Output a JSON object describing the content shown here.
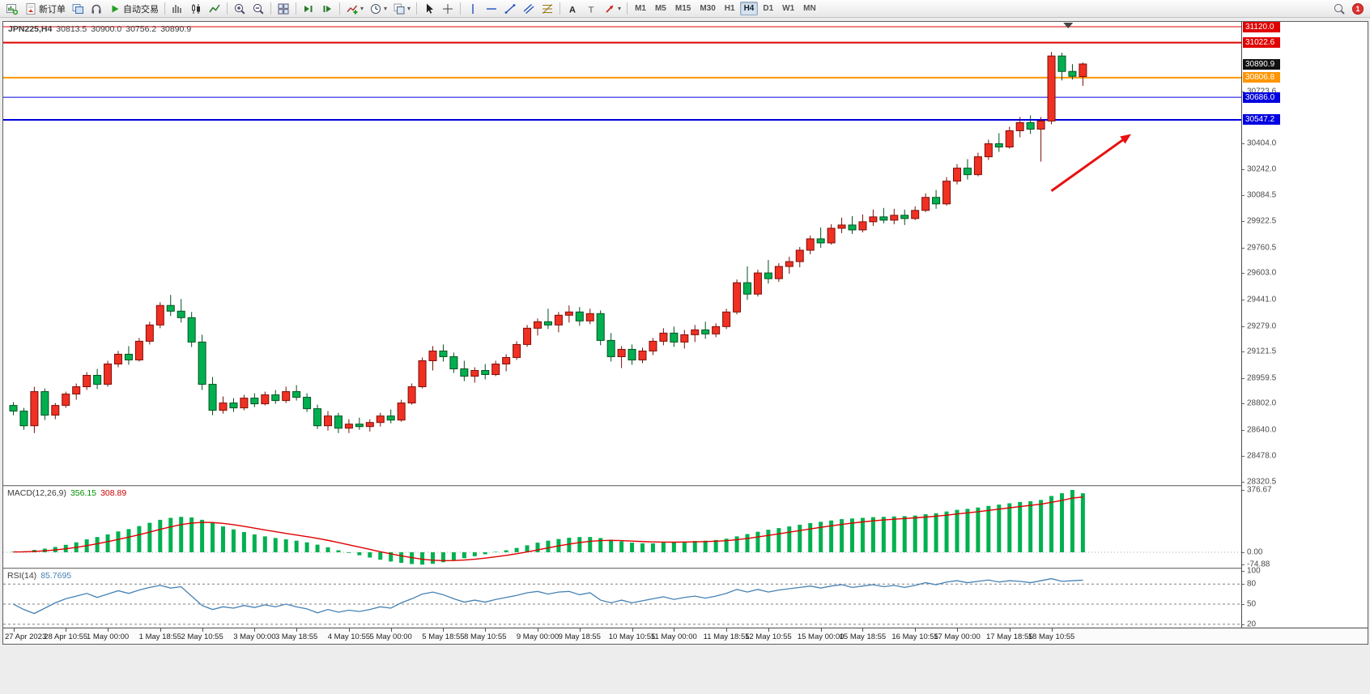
{
  "toolbar": {
    "groups": [
      [
        {
          "name": "new-chart-button",
          "icon": "chart-new"
        },
        {
          "name": "new-order-button",
          "icon": "order-doc",
          "label": "新订单"
        },
        {
          "name": "chart-profiles-button",
          "icon": "profiles"
        },
        {
          "name": "market-watch-button",
          "icon": "market-watch"
        },
        {
          "name": "autotrade-button",
          "icon": "play",
          "label": "自动交易"
        }
      ],
      [
        {
          "name": "bar-chart-button",
          "icon": "bars"
        },
        {
          "name": "candlestick-chart-button",
          "icon": "candles"
        },
        {
          "name": "line-chart-button",
          "icon": "linechart"
        }
      ],
      [
        {
          "name": "zoom-in-button",
          "icon": "zoom-in"
        },
        {
          "name": "zoom-out-button",
          "icon": "zoom-out"
        }
      ],
      [
        {
          "name": "tile-windows-button",
          "icon": "tile"
        }
      ],
      [
        {
          "name": "auto-scroll-button",
          "icon": "autoscroll"
        },
        {
          "name": "chart-shift-button",
          "icon": "chartshift"
        }
      ],
      [
        {
          "name": "indicators-button",
          "icon": "indicators",
          "dropdown": true
        },
        {
          "name": "periods-button",
          "icon": "clock",
          "dropdown": true
        },
        {
          "name": "templates-button",
          "icon": "template",
          "dropdown": true
        }
      ],
      [
        {
          "name": "cursor-button",
          "icon": "cursor"
        },
        {
          "name": "crosshair-button",
          "icon": "crosshair"
        }
      ],
      [
        {
          "name": "vertical-line-button",
          "icon": "vline"
        },
        {
          "name": "horizontal-line-button",
          "icon": "hline"
        },
        {
          "name": "trendline-button",
          "icon": "trendline"
        },
        {
          "name": "equidistant-channel-button",
          "icon": "channel"
        },
        {
          "name": "fibonacci-button",
          "icon": "fibo"
        }
      ],
      [
        {
          "name": "text-button",
          "icon": "text-a"
        },
        {
          "name": "text-label-button",
          "icon": "text-t"
        },
        {
          "name": "arrows-button",
          "icon": "arrows",
          "dropdown": true
        }
      ]
    ],
    "timeframes": [
      "M1",
      "M5",
      "M15",
      "M30",
      "H1",
      "H4",
      "D1",
      "W1",
      "MN"
    ],
    "active_timeframe": "H4",
    "notification_count": "1"
  },
  "chart": {
    "symbol": "JPN225,H4",
    "open": "30813.5",
    "high": "30900.0",
    "low": "30756.2",
    "close": "30890.9"
  },
  "indicators": {
    "macd": {
      "label": "MACD(12,26,9)",
      "main_value": "356.15",
      "signal_value": "308.89"
    },
    "rsi": {
      "label": "RSI(14)",
      "value": "85.7695"
    }
  },
  "price_scale": {
    "line_labels": [
      {
        "text": "31120.0",
        "color": "#e00000"
      },
      {
        "text": "31022.6",
        "color": "#e00000"
      },
      {
        "text": "30890.9",
        "color": "#111111"
      },
      {
        "text": "30806.8",
        "color": "#ff9500"
      },
      {
        "text": "30686.0",
        "color": "#0000e0"
      },
      {
        "text": "30547.2",
        "color": "#0000e0"
      }
    ],
    "grid_labels": [
      "30723.6",
      "30404.0",
      "30242.0",
      "30084.5",
      "29922.5",
      "29760.5",
      "29603.0",
      "29441.0",
      "29279.0",
      "29121.5",
      "28959.5",
      "28802.0",
      "28640.0",
      "28478.0",
      "28320.5"
    ],
    "macd_labels": [
      "376.67",
      "0.00",
      "-74.88"
    ],
    "rsi_labels": [
      "100",
      "80",
      "50",
      "20"
    ]
  },
  "chart_data": [
    {
      "type": "candlestick",
      "title": "JPN225,H4",
      "ylim": [
        28300,
        31150
      ],
      "x_start": 8,
      "x_step": 12.95,
      "candle_width": 9,
      "up_color": "#f03023",
      "up_border": "#7c0f08",
      "down_color": "#00b050",
      "down_border": "#00511f",
      "grid": false,
      "bid_price": 30890.9,
      "shift_marker_index": 100.6,
      "hlines": [
        {
          "price": 31120.0,
          "color": "#e00000",
          "width": 1
        },
        {
          "price": 31022.6,
          "color": "#e00000",
          "width": 2
        },
        {
          "price": 30806.8,
          "color": "#ff9500",
          "width": 2
        },
        {
          "price": 30686.0,
          "color": "#0000e0",
          "width": 1
        },
        {
          "price": 30547.2,
          "color": "#0000e0",
          "width": 2
        }
      ],
      "annotations": [
        {
          "type": "arrow",
          "x1_index": 99.0,
          "y1_price": 30110,
          "x2_index": 106.6,
          "y2_price": 30460,
          "color": "#e81010",
          "width": 3
        }
      ],
      "time_labels": [
        {
          "i": 0,
          "text": "27 Apr 2023"
        },
        {
          "i": 5,
          "text": "28 Apr 10:55"
        },
        {
          "i": 9,
          "text": "1 May 00:00"
        },
        {
          "i": 14,
          "text": "1 May 18:55"
        },
        {
          "i": 18,
          "text": "2 May 10:55"
        },
        {
          "i": 23,
          "text": "3 May 00:00"
        },
        {
          "i": 27,
          "text": "3 May 18:55"
        },
        {
          "i": 32,
          "text": "4 May 10:55"
        },
        {
          "i": 36,
          "text": "5 May 00:00"
        },
        {
          "i": 41,
          "text": "5 May 18:55"
        },
        {
          "i": 45,
          "text": "8 May 10:55"
        },
        {
          "i": 50,
          "text": "9 May 00:00"
        },
        {
          "i": 54,
          "text": "9 May 18:55"
        },
        {
          "i": 59,
          "text": "10 May 10:55"
        },
        {
          "i": 63,
          "text": "11 May 00:00"
        },
        {
          "i": 68,
          "text": "11 May 18:55"
        },
        {
          "i": 72,
          "text": "12 May 10:55"
        },
        {
          "i": 77,
          "text": "15 May 00:00"
        },
        {
          "i": 81,
          "text": "15 May 18:55"
        },
        {
          "i": 86,
          "text": "16 May 10:55"
        },
        {
          "i": 90,
          "text": "17 May 00:00"
        },
        {
          "i": 95,
          "text": "17 May 18:55"
        },
        {
          "i": 99,
          "text": "18 May 10:55"
        }
      ],
      "ohlc": [
        [
          28790,
          28810,
          28730,
          28755
        ],
        [
          28755,
          28775,
          28640,
          28665
        ],
        [
          28665,
          28905,
          28620,
          28875
        ],
        [
          28875,
          28895,
          28700,
          28730
        ],
        [
          28730,
          28805,
          28705,
          28790
        ],
        [
          28790,
          28875,
          28775,
          28860
        ],
        [
          28860,
          28925,
          28825,
          28905
        ],
        [
          28905,
          28995,
          28885,
          28975
        ],
        [
          28975,
          29015,
          28890,
          28920
        ],
        [
          28920,
          29065,
          28905,
          29045
        ],
        [
          29045,
          29125,
          29025,
          29105
        ],
        [
          29105,
          29155,
          29040,
          29070
        ],
        [
          29070,
          29205,
          29060,
          29185
        ],
        [
          29185,
          29305,
          29165,
          29285
        ],
        [
          29285,
          29425,
          29265,
          29405
        ],
        [
          29405,
          29470,
          29340,
          29370
        ],
        [
          29370,
          29445,
          29300,
          29330
        ],
        [
          29330,
          29365,
          29150,
          29180
        ],
        [
          29180,
          29225,
          28885,
          28920
        ],
        [
          28920,
          28965,
          28730,
          28760
        ],
        [
          28760,
          28845,
          28740,
          28805
        ],
        [
          28805,
          28835,
          28750,
          28775
        ],
        [
          28775,
          28855,
          28760,
          28835
        ],
        [
          28835,
          28865,
          28780,
          28800
        ],
        [
          28800,
          28875,
          28790,
          28855
        ],
        [
          28855,
          28885,
          28800,
          28820
        ],
        [
          28820,
          28905,
          28805,
          28875
        ],
        [
          28875,
          28915,
          28820,
          28840
        ],
        [
          28840,
          28865,
          28750,
          28770
        ],
        [
          28770,
          28795,
          28645,
          28665
        ],
        [
          28665,
          28755,
          28635,
          28725
        ],
        [
          28725,
          28745,
          28620,
          28650
        ],
        [
          28650,
          28705,
          28620,
          28675
        ],
        [
          28675,
          28715,
          28640,
          28660
        ],
        [
          28660,
          28705,
          28630,
          28685
        ],
        [
          28685,
          28745,
          28660,
          28725
        ],
        [
          28725,
          28765,
          28680,
          28700
        ],
        [
          28700,
          28825,
          28690,
          28805
        ],
        [
          28805,
          28925,
          28795,
          28905
        ],
        [
          28905,
          29085,
          28895,
          29065
        ],
        [
          29065,
          29155,
          29005,
          29125
        ],
        [
          29125,
          29165,
          29060,
          29090
        ],
        [
          29090,
          29115,
          28990,
          29015
        ],
        [
          29015,
          29065,
          28940,
          28970
        ],
        [
          28970,
          29025,
          28930,
          29005
        ],
        [
          29005,
          29045,
          28950,
          28980
        ],
        [
          28980,
          29065,
          28970,
          29045
        ],
        [
          29045,
          29105,
          29000,
          29085
        ],
        [
          29085,
          29185,
          29070,
          29165
        ],
        [
          29165,
          29285,
          29150,
          29265
        ],
        [
          29265,
          29325,
          29220,
          29305
        ],
        [
          29305,
          29385,
          29260,
          29285
        ],
        [
          29285,
          29365,
          29240,
          29345
        ],
        [
          29345,
          29405,
          29300,
          29365
        ],
        [
          29365,
          29395,
          29280,
          29310
        ],
        [
          29310,
          29385,
          29290,
          29355
        ],
        [
          29355,
          29375,
          29160,
          29190
        ],
        [
          29190,
          29235,
          29060,
          29090
        ],
        [
          29090,
          29155,
          29020,
          29135
        ],
        [
          29135,
          29165,
          29040,
          29070
        ],
        [
          29070,
          29145,
          29050,
          29125
        ],
        [
          29125,
          29205,
          29100,
          29185
        ],
        [
          29185,
          29265,
          29160,
          29235
        ],
        [
          29235,
          29275,
          29150,
          29180
        ],
        [
          29180,
          29255,
          29140,
          29225
        ],
        [
          29225,
          29285,
          29180,
          29255
        ],
        [
          29255,
          29305,
          29200,
          29230
        ],
        [
          29230,
          29295,
          29210,
          29275
        ],
        [
          29275,
          29385,
          29260,
          29365
        ],
        [
          29365,
          29565,
          29350,
          29545
        ],
        [
          29545,
          29645,
          29440,
          29475
        ],
        [
          29475,
          29625,
          29460,
          29605
        ],
        [
          29605,
          29685,
          29540,
          29570
        ],
        [
          29570,
          29665,
          29550,
          29645
        ],
        [
          29645,
          29705,
          29600,
          29675
        ],
        [
          29675,
          29765,
          29640,
          29745
        ],
        [
          29745,
          29835,
          29720,
          29815
        ],
        [
          29815,
          29885,
          29760,
          29790
        ],
        [
          29790,
          29905,
          29780,
          29880
        ],
        [
          29880,
          29945,
          29850,
          29900
        ],
        [
          29900,
          29955,
          29845,
          29870
        ],
        [
          29870,
          29965,
          29855,
          29920
        ],
        [
          29920,
          29995,
          29895,
          29950
        ],
        [
          29950,
          30005,
          29910,
          29930
        ],
        [
          29930,
          30000,
          29905,
          29960
        ],
        [
          29960,
          29995,
          29900,
          29940
        ],
        [
          29940,
          30015,
          29930,
          29990
        ],
        [
          29990,
          30095,
          29980,
          30070
        ],
        [
          30070,
          30115,
          30000,
          30030
        ],
        [
          30030,
          30195,
          30020,
          30170
        ],
        [
          30170,
          30275,
          30150,
          30250
        ],
        [
          30250,
          30305,
          30180,
          30210
        ],
        [
          30210,
          30345,
          30200,
          30320
        ],
        [
          30320,
          30425,
          30300,
          30400
        ],
        [
          30400,
          30465,
          30350,
          30380
        ],
        [
          30380,
          30505,
          30370,
          30480
        ],
        [
          30480,
          30565,
          30440,
          30530
        ],
        [
          30530,
          30575,
          30460,
          30490
        ],
        [
          30490,
          30565,
          30290,
          30540
        ],
        [
          30540,
          30965,
          30520,
          30940
        ],
        [
          30940,
          30960,
          30790,
          30845
        ],
        [
          30845,
          30890,
          30795,
          30815
        ],
        [
          30813.5,
          30900.0,
          30756.2,
          30890.9
        ]
      ]
    },
    {
      "type": "bar",
      "name": "MACD",
      "ylim": [
        -93,
        396
      ],
      "bar_color": "#00b050",
      "signal_color": "#e00000",
      "signal_smoothing": 0.22,
      "zero_level": 0,
      "values": [
        2,
        6,
        14,
        22,
        32,
        45,
        60,
        78,
        92,
        108,
        126,
        140,
        158,
        178,
        196,
        208,
        214,
        210,
        196,
        176,
        156,
        138,
        122,
        108,
        96,
        86,
        78,
        70,
        60,
        46,
        30,
        12,
        -4,
        -18,
        -32,
        -45,
        -56,
        -64,
        -71,
        -74.88,
        -70,
        -60,
        -48,
        -36,
        -24,
        -12,
        0,
        12,
        26,
        42,
        58,
        70,
        80,
        88,
        92,
        92,
        86,
        76,
        66,
        58,
        54,
        54,
        58,
        60,
        64,
        68,
        70,
        74,
        82,
        96,
        110,
        124,
        136,
        146,
        156,
        166,
        176,
        184,
        192,
        200,
        204,
        208,
        212,
        214,
        216,
        218,
        222,
        230,
        236,
        246,
        256,
        262,
        270,
        280,
        288,
        296,
        304,
        308,
        316,
        340,
        356,
        376.67,
        356.15
      ]
    },
    {
      "type": "line",
      "name": "RSI",
      "ylim": [
        15,
        102
      ],
      "line_color": "#4682b4",
      "levels": [
        80,
        50,
        20
      ],
      "level_color": "#808080",
      "values": [
        50,
        42,
        36,
        44,
        52,
        58,
        62,
        66,
        60,
        65,
        70,
        66,
        71,
        75,
        78,
        74,
        76,
        62,
        48,
        42,
        46,
        44,
        48,
        45,
        49,
        46,
        50,
        46,
        43,
        37,
        42,
        38,
        41,
        39,
        42,
        46,
        44,
        52,
        58,
        65,
        68,
        64,
        58,
        53,
        56,
        53,
        57,
        60,
        63,
        67,
        69,
        65,
        68,
        69,
        64,
        67,
        56,
        52,
        56,
        52,
        55,
        58,
        61,
        57,
        60,
        62,
        59,
        62,
        66,
        72,
        68,
        72,
        68,
        71,
        73,
        75,
        77,
        74,
        77,
        79,
        75,
        77,
        79,
        76,
        78,
        75,
        78,
        82,
        79,
        83,
        85,
        82,
        84,
        86,
        83,
        85,
        84,
        82,
        85,
        88,
        84,
        85,
        85.77
      ]
    }
  ]
}
